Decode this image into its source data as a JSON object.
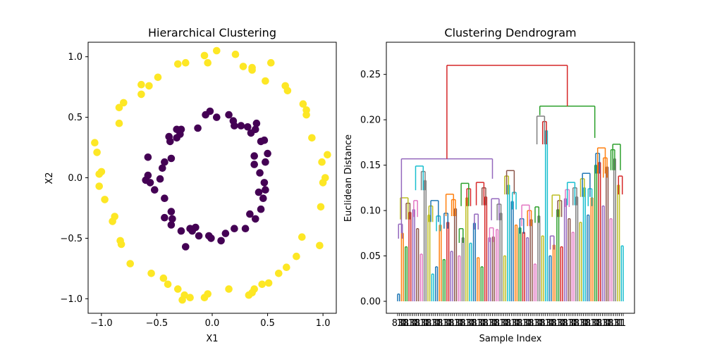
{
  "chart_data": [
    {
      "type": "scatter",
      "title": "Hierarchical Clustering",
      "xlabel": "X1",
      "ylabel": "X2",
      "xlim": [
        -1.12,
        1.12
      ],
      "ylim": [
        -1.12,
        1.12
      ],
      "xticks": [
        -1.0,
        -0.5,
        0.0,
        0.5,
        1.0
      ],
      "yticks": [
        -1.0,
        -0.5,
        0.0,
        0.5,
        1.0
      ],
      "grid": false,
      "series": [
        {
          "color": "#440154",
          "points": [
            [
              -0.02,
              0.55
            ],
            [
              0.04,
              0.5
            ],
            [
              -0.06,
              0.52
            ],
            [
              0.15,
              0.52
            ],
            [
              0.19,
              0.47
            ],
            [
              0.2,
              0.43
            ],
            [
              0.26,
              0.43
            ],
            [
              0.4,
              0.45
            ],
            [
              0.39,
              0.4
            ],
            [
              0.32,
              0.42
            ],
            [
              0.35,
              0.37
            ],
            [
              0.44,
              0.3
            ],
            [
              0.47,
              0.31
            ],
            [
              0.5,
              0.2
            ],
            [
              0.38,
              0.18
            ],
            [
              0.48,
              0.13
            ],
            [
              0.38,
              0.11
            ],
            [
              0.43,
              0.04
            ],
            [
              0.47,
              -0.04
            ],
            [
              0.48,
              -0.1
            ],
            [
              0.42,
              -0.12
            ],
            [
              0.46,
              -0.17
            ],
            [
              0.44,
              -0.26
            ],
            [
              0.34,
              -0.3
            ],
            [
              0.39,
              -0.34
            ],
            [
              0.3,
              -0.42
            ],
            [
              0.2,
              -0.42
            ],
            [
              0.12,
              -0.46
            ],
            [
              0.08,
              -0.52
            ],
            [
              -0.01,
              -0.5
            ],
            [
              -0.03,
              -0.48
            ],
            [
              -0.12,
              -0.48
            ],
            [
              -0.15,
              -0.41
            ],
            [
              -0.18,
              -0.44
            ],
            [
              -0.2,
              -0.42
            ],
            [
              -0.28,
              -0.44
            ],
            [
              -0.24,
              -0.57
            ],
            [
              -0.37,
              -0.39
            ],
            [
              -0.36,
              -0.34
            ],
            [
              -0.43,
              -0.33
            ],
            [
              -0.37,
              -0.28
            ],
            [
              -0.43,
              -0.17
            ],
            [
              -0.52,
              -0.1
            ],
            [
              -0.56,
              -0.04
            ],
            [
              -0.58,
              0.02
            ],
            [
              -0.6,
              -0.02
            ],
            [
              -0.47,
              -0.01
            ],
            [
              -0.45,
              0.08
            ],
            [
              -0.43,
              0.13
            ],
            [
              -0.37,
              0.16
            ],
            [
              -0.58,
              0.17
            ],
            [
              -0.38,
              0.3
            ],
            [
              -0.39,
              0.34
            ],
            [
              -0.32,
              0.33
            ],
            [
              -0.29,
              0.36
            ],
            [
              -0.28,
              0.4
            ],
            [
              -0.29,
              0.39
            ],
            [
              -0.32,
              0.4
            ],
            [
              -0.13,
              0.41
            ]
          ]
        },
        {
          "color": "#fde725",
          "points": [
            [
              0.04,
              1.05
            ],
            [
              -0.07,
              1.01
            ],
            [
              -0.04,
              0.95
            ],
            [
              0.21,
              1.02
            ],
            [
              -0.24,
              0.95
            ],
            [
              -0.31,
              0.94
            ],
            [
              0.28,
              0.92
            ],
            [
              0.36,
              0.91
            ],
            [
              0.36,
              0.89
            ],
            [
              0.48,
              0.8
            ],
            [
              0.53,
              0.95
            ],
            [
              -0.57,
              0.76
            ],
            [
              -0.64,
              0.77
            ],
            [
              -0.64,
              0.69
            ],
            [
              -0.49,
              0.83
            ],
            [
              0.66,
              0.76
            ],
            [
              0.68,
              0.72
            ],
            [
              -0.8,
              0.62
            ],
            [
              -0.84,
              0.58
            ],
            [
              0.82,
              0.61
            ],
            [
              0.85,
              0.56
            ],
            [
              -0.84,
              0.45
            ],
            [
              0.85,
              0.52
            ],
            [
              0.9,
              0.33
            ],
            [
              -1.06,
              0.29
            ],
            [
              1.04,
              0.19
            ],
            [
              -1.04,
              0.21
            ],
            [
              -1.02,
              0.03
            ],
            [
              0.99,
              0.13
            ],
            [
              -1.0,
              0.05
            ],
            [
              1.02,
              0.0
            ],
            [
              1.0,
              -0.04
            ],
            [
              -1.02,
              -0.07
            ],
            [
              -0.97,
              -0.18
            ],
            [
              0.98,
              -0.24
            ],
            [
              -0.88,
              -0.32
            ],
            [
              -0.9,
              -0.36
            ],
            [
              0.81,
              -0.49
            ],
            [
              0.97,
              -0.56
            ],
            [
              -0.83,
              -0.52
            ],
            [
              -0.82,
              -0.55
            ],
            [
              0.76,
              -0.65
            ],
            [
              0.67,
              -0.74
            ],
            [
              -0.74,
              -0.71
            ],
            [
              0.6,
              -0.79
            ],
            [
              -0.55,
              -0.79
            ],
            [
              0.51,
              -0.87
            ],
            [
              0.45,
              -0.88
            ],
            [
              -0.44,
              -0.83
            ],
            [
              0.36,
              -0.95
            ],
            [
              0.15,
              -0.92
            ],
            [
              -0.04,
              -0.96
            ],
            [
              -0.2,
              -0.99
            ],
            [
              -0.25,
              -0.97
            ],
            [
              -0.27,
              -1.01
            ],
            [
              -0.31,
              -0.92
            ],
            [
              -0.07,
              -0.99
            ],
            [
              0.33,
              -0.97
            ],
            [
              0.38,
              -0.92
            ],
            [
              -0.4,
              -0.88
            ]
          ]
        }
      ]
    },
    {
      "type": "dendrogram",
      "title": "Clustering Dendrogram",
      "xlabel": "Sample Index",
      "ylabel": "Euclidean Distance",
      "ylim": [
        0,
        0.273
      ],
      "yticks": [
        "0.00",
        "0.05",
        "0.10",
        "0.15",
        "0.20",
        "0.25"
      ],
      "leaf_count": 120,
      "tick_labels": [
        "83",
        "1",
        "1",
        "1",
        "1",
        "1"
      ],
      "grid": false,
      "top_merge": {
        "height": 0.26,
        "color": "#d62728"
      },
      "left_cluster": {
        "height": 0.157,
        "color": "#9467bd"
      },
      "right_cluster": {
        "height": 0.215,
        "color": "#2ca02c"
      },
      "link_colors": [
        "#1f77b4",
        "#ff7f0e",
        "#2ca02c",
        "#d62728",
        "#9467bd",
        "#8c564b",
        "#e377c2",
        "#7f7f7f",
        "#bcbd22",
        "#17becf"
      ],
      "leaf_heights": [
        0.008,
        0.007,
        0.075,
        0.07,
        0.06,
        0.045,
        0.062,
        0.098,
        0.058,
        0.101,
        0.08,
        0.072,
        0.052,
        0.022,
        0.028,
        0.133,
        0.088,
        0.095,
        0.026,
        0.03,
        0.038,
        0.034,
        0.084,
        0.061,
        0.046,
        0.025,
        0.087,
        0.082,
        0.055,
        0.021,
        0.102,
        0.097,
        0.044,
        0.05,
        0.026,
        0.07,
        0.108,
        0.114,
        0.064,
        0.031,
        0.086,
        0.042,
        0.045,
        0.048,
        0.038,
        0.033,
        0.115,
        0.112,
        0.042,
        0.07,
        0.052,
        0.071,
        0.079,
        0.04,
        0.097,
        0.048,
        0.05,
        0.045,
        0.06,
        0.128,
        0.11,
        0.041,
        0.052,
        0.084,
        0.081,
        0.063,
        0.037,
        0.076,
        0.07,
        0.061,
        0.03,
        0.09,
        0.037,
        0.041,
        0.094,
        0.05,
        0.072,
        0.068,
        0.011,
        0.188,
        0.05,
        0.045,
        0.062,
        0.031,
        0.101,
        0.084,
        0.06,
        0.026,
        0.113,
        0.062,
        0.091,
        0.068,
        0.076,
        0.038,
        0.066,
        0.115,
        0.035,
        0.087,
        0.07,
        0.125,
        0.095,
        0.085,
        0.07,
        0.114,
        0.06,
        0.15,
        0.153,
        0.008,
        0.105,
        0.065,
        0.038,
        0.148,
        0.072,
        0.091,
        0.157,
        0.09,
        0.128,
        0.048,
        0.061,
        0.05
      ]
    }
  ]
}
